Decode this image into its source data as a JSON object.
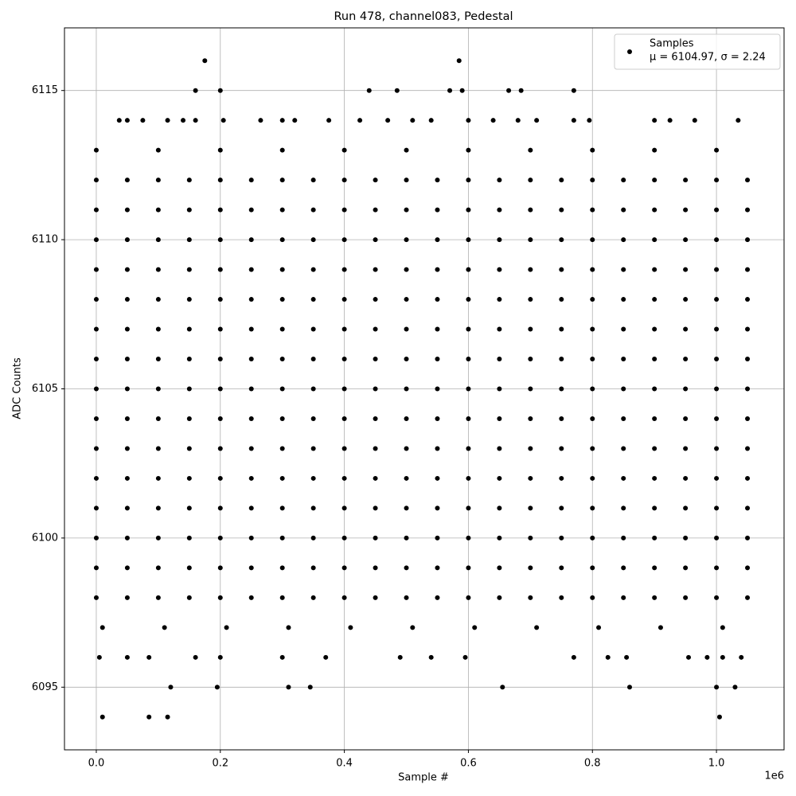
{
  "chart_data": {
    "type": "scatter",
    "title": "Run 478, channel083, Pedestal",
    "xlabel": "Sample #",
    "ylabel": "ADC Counts",
    "x_offset_label": "1e6",
    "xlim": [
      -51300,
      1109000
    ],
    "ylim": [
      6092.9,
      6117.1
    ],
    "xticks": [
      {
        "value": 0,
        "label": "0.0"
      },
      {
        "value": 200000,
        "label": "0.2"
      },
      {
        "value": 400000,
        "label": "0.4"
      },
      {
        "value": 600000,
        "label": "0.6"
      },
      {
        "value": 800000,
        "label": "0.8"
      },
      {
        "value": 1000000,
        "label": "1.0"
      }
    ],
    "yticks": [
      6095,
      6100,
      6105,
      6110,
      6115
    ],
    "grid": true,
    "legend_position": "upper right",
    "series": [
      {
        "name": "Samples",
        "stats": "μ = 6104.97, σ = 2.24",
        "color": "#000000",
        "x": [
          175000,
          585000,
          160000,
          200000,
          440000,
          485000,
          570000,
          590000,
          665000,
          685000,
          770000,
          37000,
          50000,
          75000,
          115000,
          140000,
          160000,
          205000,
          265000,
          300000,
          320000,
          375000,
          425000,
          470000,
          510000,
          540000,
          600000,
          640000,
          680000,
          710000,
          770000,
          795000,
          900000,
          925000,
          965000,
          1035000,
          0,
          100000,
          200000,
          300000,
          400000,
          500000,
          600000,
          700000,
          800000,
          900000,
          1000000,
          0,
          50000,
          100000,
          150000,
          200000,
          250000,
          300000,
          350000,
          400000,
          450000,
          500000,
          550000,
          600000,
          650000,
          700000,
          750000,
          800000,
          850000,
          900000,
          950000,
          1000000,
          1050000,
          0,
          50000,
          100000,
          150000,
          200000,
          250000,
          300000,
          350000,
          400000,
          450000,
          500000,
          550000,
          600000,
          650000,
          700000,
          750000,
          800000,
          850000,
          900000,
          950000,
          1000000,
          1050000,
          0,
          50000,
          100000,
          150000,
          200000,
          250000,
          300000,
          350000,
          400000,
          450000,
          500000,
          550000,
          600000,
          650000,
          700000,
          750000,
          800000,
          850000,
          900000,
          950000,
          1000000,
          1050000,
          0,
          50000,
          100000,
          150000,
          200000,
          250000,
          300000,
          350000,
          400000,
          450000,
          500000,
          550000,
          600000,
          650000,
          700000,
          750000,
          800000,
          850000,
          900000,
          950000,
          1000000,
          1050000,
          0,
          50000,
          100000,
          150000,
          200000,
          250000,
          300000,
          350000,
          400000,
          450000,
          500000,
          550000,
          600000,
          650000,
          700000,
          750000,
          800000,
          850000,
          900000,
          950000,
          1000000,
          1050000,
          0,
          50000,
          100000,
          150000,
          200000,
          250000,
          300000,
          350000,
          400000,
          450000,
          500000,
          550000,
          600000,
          650000,
          700000,
          750000,
          800000,
          850000,
          900000,
          950000,
          1000000,
          1050000,
          0,
          50000,
          100000,
          150000,
          200000,
          250000,
          300000,
          350000,
          400000,
          450000,
          500000,
          550000,
          600000,
          650000,
          700000,
          750000,
          800000,
          850000,
          900000,
          950000,
          1000000,
          1050000,
          0,
          50000,
          100000,
          150000,
          200000,
          250000,
          300000,
          350000,
          400000,
          450000,
          500000,
          550000,
          600000,
          650000,
          700000,
          750000,
          800000,
          850000,
          900000,
          950000,
          1000000,
          1050000,
          0,
          50000,
          100000,
          150000,
          200000,
          250000,
          300000,
          350000,
          400000,
          450000,
          500000,
          550000,
          600000,
          650000,
          700000,
          750000,
          800000,
          850000,
          900000,
          950000,
          1000000,
          1050000,
          0,
          50000,
          100000,
          150000,
          200000,
          250000,
          300000,
          350000,
          400000,
          450000,
          500000,
          550000,
          600000,
          650000,
          700000,
          750000,
          800000,
          850000,
          900000,
          950000,
          1000000,
          1050000,
          0,
          50000,
          100000,
          150000,
          200000,
          250000,
          300000,
          350000,
          400000,
          450000,
          500000,
          550000,
          600000,
          650000,
          700000,
          750000,
          800000,
          850000,
          900000,
          950000,
          1000000,
          1050000,
          0,
          50000,
          100000,
          150000,
          200000,
          250000,
          300000,
          350000,
          400000,
          450000,
          500000,
          550000,
          600000,
          650000,
          700000,
          750000,
          800000,
          850000,
          900000,
          950000,
          1000000,
          1050000,
          0,
          50000,
          100000,
          150000,
          200000,
          250000,
          300000,
          350000,
          400000,
          450000,
          500000,
          550000,
          600000,
          650000,
          700000,
          750000,
          800000,
          850000,
          900000,
          950000,
          1000000,
          1050000,
          0,
          50000,
          100000,
          150000,
          200000,
          250000,
          300000,
          350000,
          400000,
          450000,
          500000,
          550000,
          600000,
          650000,
          700000,
          750000,
          800000,
          850000,
          900000,
          950000,
          1000000,
          1050000,
          0,
          50000,
          100000,
          150000,
          200000,
          250000,
          300000,
          350000,
          400000,
          450000,
          500000,
          550000,
          600000,
          650000,
          700000,
          750000,
          800000,
          850000,
          900000,
          950000,
          1000000,
          1050000,
          10000,
          110000,
          210000,
          310000,
          410000,
          510000,
          610000,
          710000,
          810000,
          910000,
          1010000,
          5000,
          50000,
          85000,
          160000,
          200000,
          300000,
          370000,
          490000,
          540000,
          595000,
          770000,
          825000,
          855000,
          955000,
          985000,
          1010000,
          1040000,
          120000,
          195000,
          310000,
          345000,
          655000,
          860000,
          1000000,
          1030000,
          10000,
          85000,
          115000,
          1005000
        ],
        "values": [
          6116,
          6116,
          6115,
          6115,
          6115,
          6115,
          6115,
          6115,
          6115,
          6115,
          6115,
          6114,
          6114,
          6114,
          6114,
          6114,
          6114,
          6114,
          6114,
          6114,
          6114,
          6114,
          6114,
          6114,
          6114,
          6114,
          6114,
          6114,
          6114,
          6114,
          6114,
          6114,
          6114,
          6114,
          6114,
          6114,
          6113,
          6113,
          6113,
          6113,
          6113,
          6113,
          6113,
          6113,
          6113,
          6113,
          6113,
          6112,
          6112,
          6112,
          6112,
          6112,
          6112,
          6112,
          6112,
          6112,
          6112,
          6112,
          6112,
          6112,
          6112,
          6112,
          6112,
          6112,
          6112,
          6112,
          6112,
          6112,
          6112,
          6111,
          6111,
          6111,
          6111,
          6111,
          6111,
          6111,
          6111,
          6111,
          6111,
          6111,
          6111,
          6111,
          6111,
          6111,
          6111,
          6111,
          6111,
          6111,
          6111,
          6111,
          6111,
          6110,
          6110,
          6110,
          6110,
          6110,
          6110,
          6110,
          6110,
          6110,
          6110,
          6110,
          6110,
          6110,
          6110,
          6110,
          6110,
          6110,
          6110,
          6110,
          6110,
          6110,
          6110,
          6109,
          6109,
          6109,
          6109,
          6109,
          6109,
          6109,
          6109,
          6109,
          6109,
          6109,
          6109,
          6109,
          6109,
          6109,
          6109,
          6109,
          6109,
          6109,
          6109,
          6109,
          6109,
          6108,
          6108,
          6108,
          6108,
          6108,
          6108,
          6108,
          6108,
          6108,
          6108,
          6108,
          6108,
          6108,
          6108,
          6108,
          6108,
          6108,
          6108,
          6108,
          6108,
          6108,
          6108,
          6107,
          6107,
          6107,
          6107,
          6107,
          6107,
          6107,
          6107,
          6107,
          6107,
          6107,
          6107,
          6107,
          6107,
          6107,
          6107,
          6107,
          6107,
          6107,
          6107,
          6107,
          6107,
          6106,
          6106,
          6106,
          6106,
          6106,
          6106,
          6106,
          6106,
          6106,
          6106,
          6106,
          6106,
          6106,
          6106,
          6106,
          6106,
          6106,
          6106,
          6106,
          6106,
          6106,
          6106,
          6105,
          6105,
          6105,
          6105,
          6105,
          6105,
          6105,
          6105,
          6105,
          6105,
          6105,
          6105,
          6105,
          6105,
          6105,
          6105,
          6105,
          6105,
          6105,
          6105,
          6105,
          6105,
          6104,
          6104,
          6104,
          6104,
          6104,
          6104,
          6104,
          6104,
          6104,
          6104,
          6104,
          6104,
          6104,
          6104,
          6104,
          6104,
          6104,
          6104,
          6104,
          6104,
          6104,
          6104,
          6103,
          6103,
          6103,
          6103,
          6103,
          6103,
          6103,
          6103,
          6103,
          6103,
          6103,
          6103,
          6103,
          6103,
          6103,
          6103,
          6103,
          6103,
          6103,
          6103,
          6103,
          6103,
          6102,
          6102,
          6102,
          6102,
          6102,
          6102,
          6102,
          6102,
          6102,
          6102,
          6102,
          6102,
          6102,
          6102,
          6102,
          6102,
          6102,
          6102,
          6102,
          6102,
          6102,
          6102,
          6101,
          6101,
          6101,
          6101,
          6101,
          6101,
          6101,
          6101,
          6101,
          6101,
          6101,
          6101,
          6101,
          6101,
          6101,
          6101,
          6101,
          6101,
          6101,
          6101,
          6101,
          6101,
          6100,
          6100,
          6100,
          6100,
          6100,
          6100,
          6100,
          6100,
          6100,
          6100,
          6100,
          6100,
          6100,
          6100,
          6100,
          6100,
          6100,
          6100,
          6100,
          6100,
          6100,
          6100,
          6099,
          6099,
          6099,
          6099,
          6099,
          6099,
          6099,
          6099,
          6099,
          6099,
          6099,
          6099,
          6099,
          6099,
          6099,
          6099,
          6099,
          6099,
          6099,
          6099,
          6099,
          6099,
          6098,
          6098,
          6098,
          6098,
          6098,
          6098,
          6098,
          6098,
          6098,
          6098,
          6098,
          6098,
          6098,
          6098,
          6098,
          6098,
          6098,
          6098,
          6098,
          6098,
          6098,
          6098,
          6097,
          6097,
          6097,
          6097,
          6097,
          6097,
          6097,
          6097,
          6097,
          6097,
          6097,
          6096,
          6096,
          6096,
          6096,
          6096,
          6096,
          6096,
          6096,
          6096,
          6096,
          6096,
          6096,
          6096,
          6096,
          6096,
          6096,
          6096,
          6095,
          6095,
          6095,
          6095,
          6095,
          6095,
          6095,
          6095,
          6094,
          6094,
          6094,
          6094
        ]
      }
    ]
  }
}
